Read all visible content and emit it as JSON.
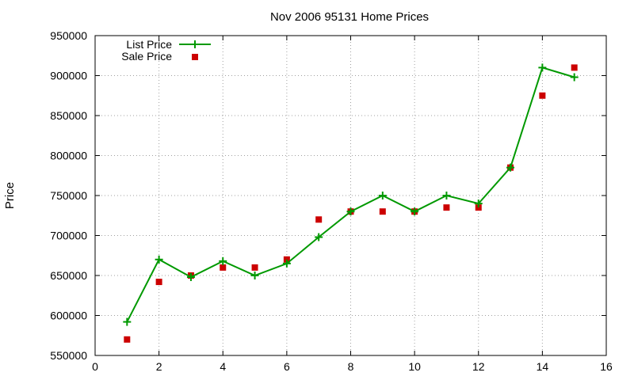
{
  "chart_data": {
    "type": "line",
    "title": "Nov 2006 95131 Home Prices",
    "xlabel": "",
    "ylabel": "Price",
    "xlim": [
      0,
      16
    ],
    "ylim": [
      550000,
      950000
    ],
    "x_ticks": [
      "0",
      "2",
      "4",
      "6",
      "8",
      "10",
      "12",
      "14",
      "16"
    ],
    "y_ticks": [
      "550000",
      "600000",
      "650000",
      "700000",
      "750000",
      "800000",
      "850000",
      "900000",
      "950000"
    ],
    "grid": true,
    "legend_position": "top-left",
    "series": [
      {
        "name": "List Price",
        "style": "line-with-plus-markers",
        "color": "#009900",
        "x": [
          1,
          2,
          3,
          4,
          5,
          6,
          7,
          8,
          9,
          10,
          11,
          12,
          13,
          14,
          15
        ],
        "values": [
          592000,
          670000,
          648000,
          668000,
          650000,
          665000,
          698000,
          730000,
          750000,
          730000,
          750000,
          740000,
          785000,
          910000,
          898000
        ]
      },
      {
        "name": "Sale Price",
        "style": "square-markers",
        "color": "#cc0000",
        "x": [
          1,
          2,
          3,
          4,
          5,
          6,
          7,
          8,
          9,
          10,
          11,
          12,
          13,
          14,
          15
        ],
        "values": [
          570000,
          642000,
          650000,
          660000,
          660000,
          670000,
          720000,
          730000,
          730000,
          730000,
          735000,
          735000,
          785000,
          875000,
          910000
        ]
      }
    ]
  }
}
